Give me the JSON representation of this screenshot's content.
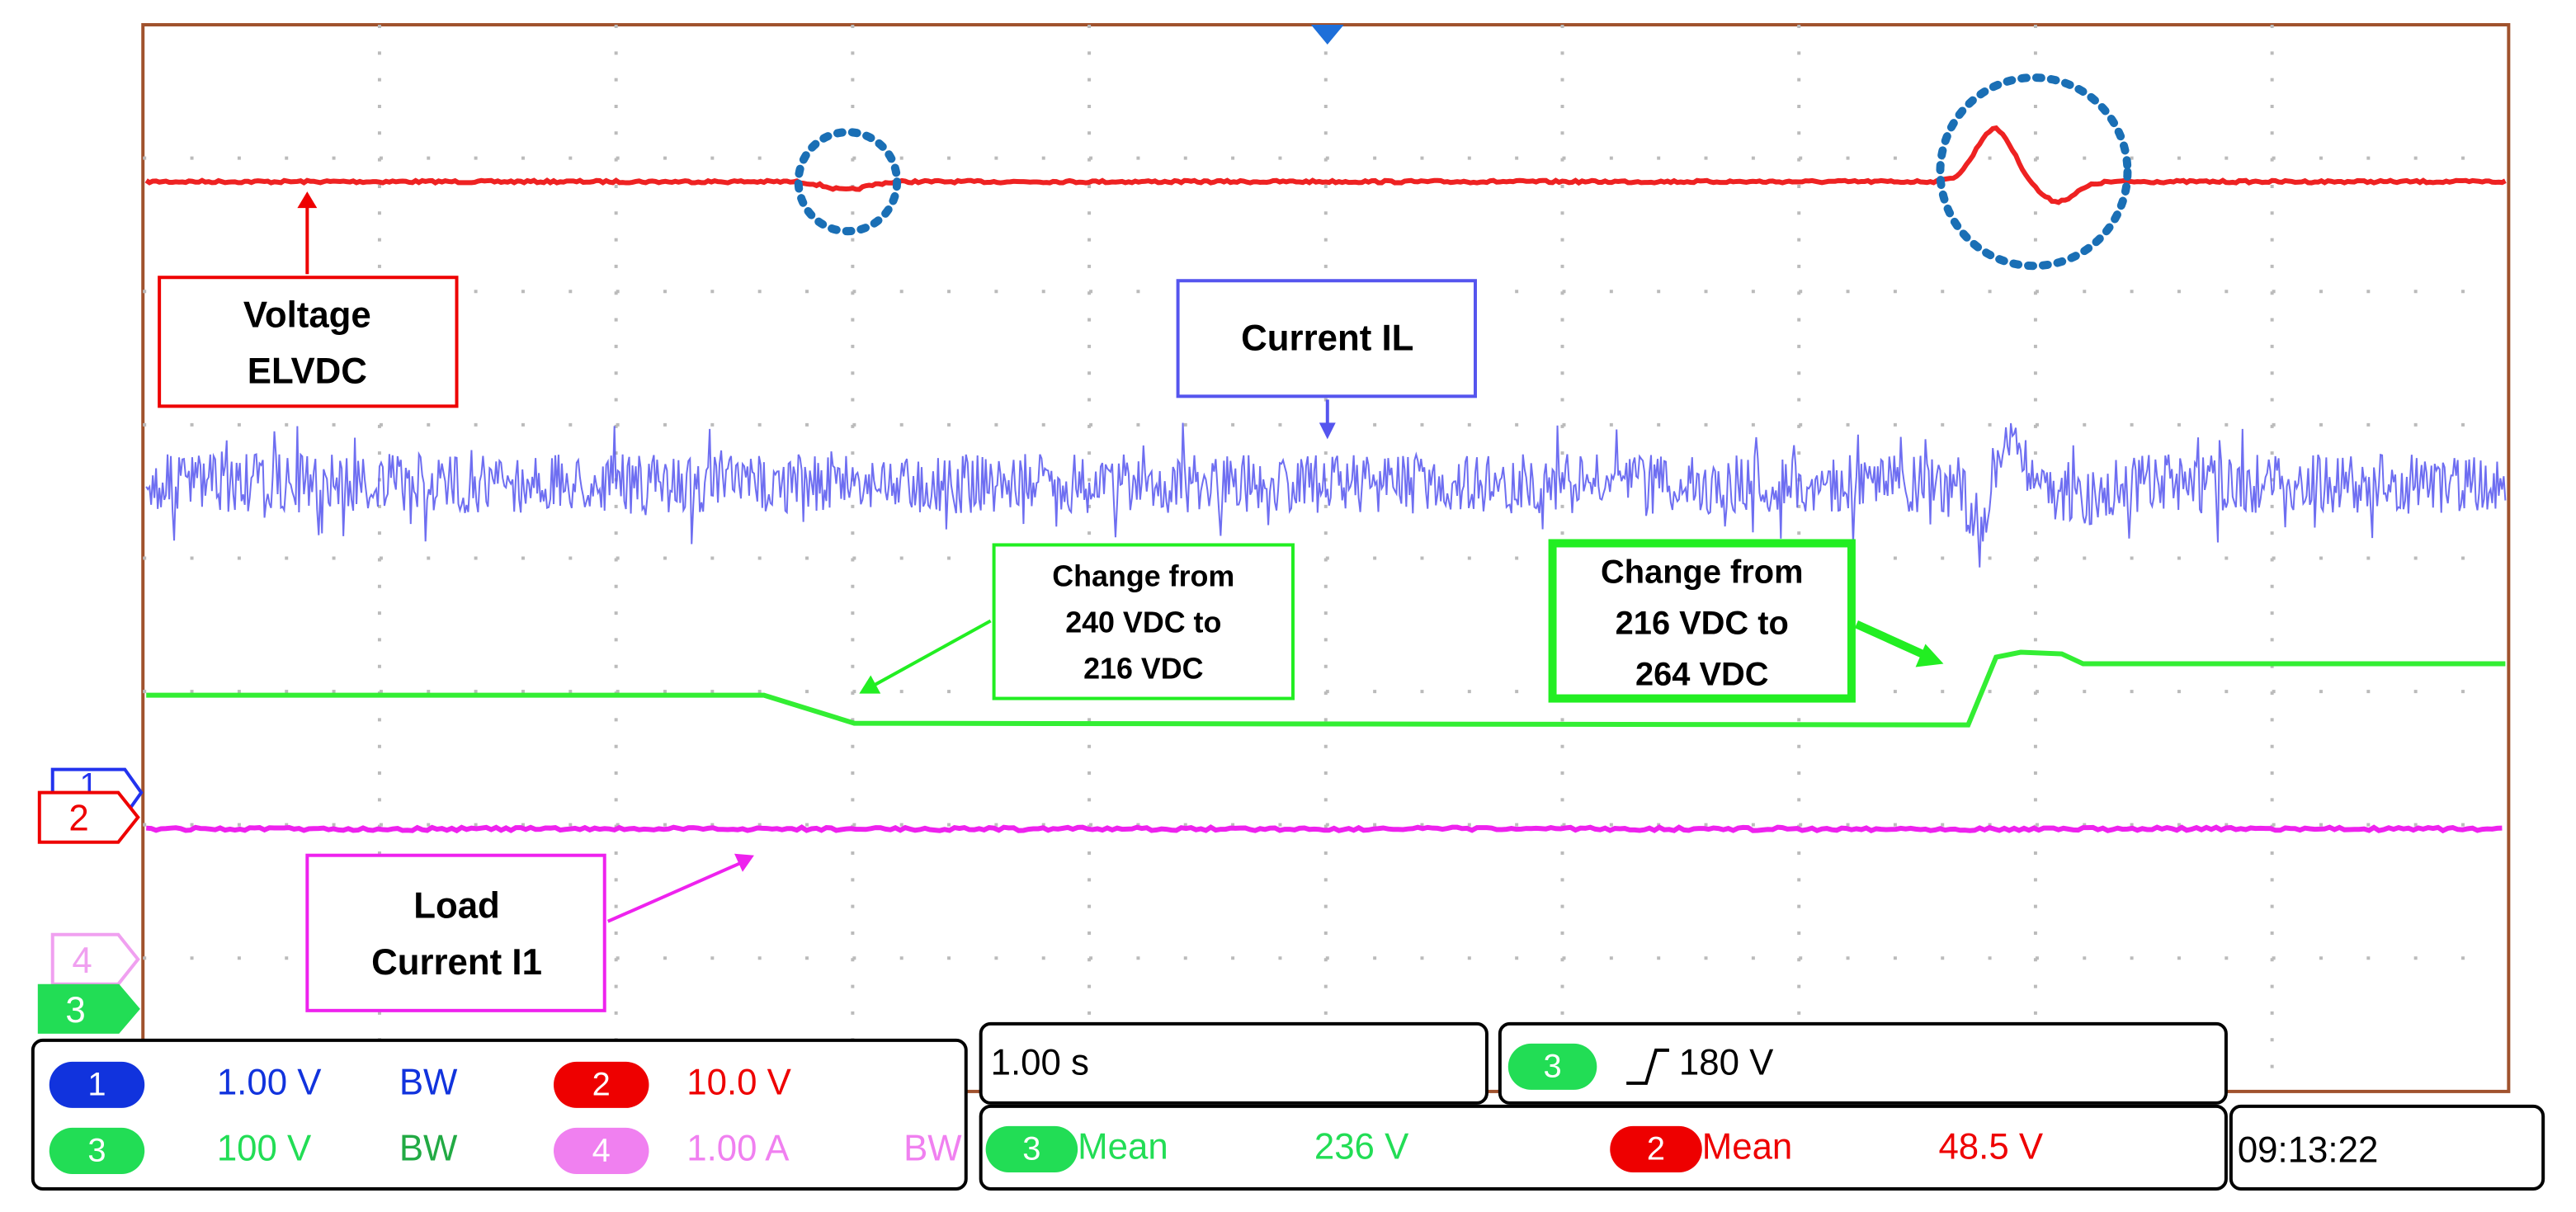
{
  "annotations": {
    "voltage": [
      "Voltage",
      "ELVDC"
    ],
    "current_il": "Current IL",
    "change_down": [
      "Change from",
      "240 VDC to",
      "216 VDC"
    ],
    "change_up": [
      "Change from",
      "216 VDC to",
      "264 VDC"
    ],
    "load": [
      "Load",
      "Current I1"
    ]
  },
  "markers": [
    "1",
    "2",
    "4",
    "3"
  ],
  "status": {
    "ch1": {
      "number": "1",
      "scale": "1.00 V",
      "bw": "BW"
    },
    "ch2": {
      "number": "2",
      "scale": "10.0 V"
    },
    "ch3": {
      "number": "3",
      "scale": "100 V",
      "bw": "BW"
    },
    "ch4": {
      "number": "4",
      "scale": "1.00 A",
      "bw": "BW"
    },
    "timebase": "1.00 s",
    "trigger": {
      "number": "3",
      "level": "180 V"
    },
    "measure1": {
      "number": "3",
      "label": "Mean",
      "value": "236 V"
    },
    "measure2": {
      "number": "2",
      "label": "Mean",
      "value": "48.5 V"
    },
    "clock": "09:13:22"
  }
}
